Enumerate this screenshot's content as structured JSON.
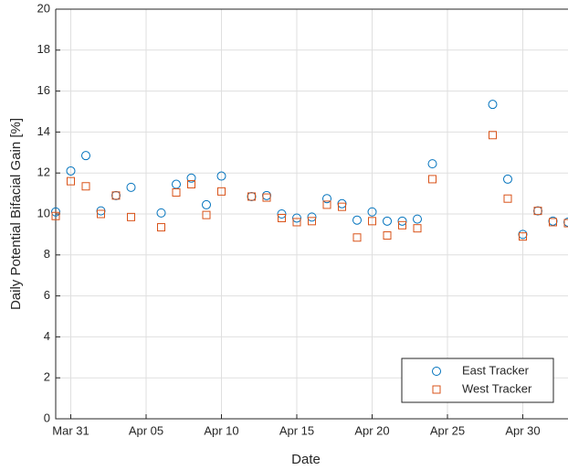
{
  "chart_data": {
    "type": "scatter",
    "x_label": "Date",
    "y_label": "Daily Potential Bifacial Gain [%]",
    "x": [
      "Mar 30",
      "Mar 31",
      "Apr 01",
      "Apr 02",
      "Apr 03",
      "Apr 04",
      "Apr 06",
      "Apr 07",
      "Apr 08",
      "Apr 09",
      "Apr 10",
      "Apr 12",
      "Apr 13",
      "Apr 14",
      "Apr 15",
      "Apr 16",
      "Apr 17",
      "Apr 18",
      "Apr 19",
      "Apr 20",
      "Apr 21",
      "Apr 22",
      "Apr 23",
      "Apr 24",
      "Apr 28",
      "Apr 29",
      "Apr 30",
      "May 01",
      "May 02",
      "May 03"
    ],
    "series": [
      {
        "name": "East Tracker",
        "color": "#0072bd",
        "marker": "circle",
        "values": [
          10.1,
          12.1,
          12.85,
          10.15,
          10.9,
          11.3,
          10.05,
          11.45,
          11.75,
          10.45,
          11.85,
          10.85,
          10.9,
          10.0,
          9.8,
          9.85,
          10.75,
          10.5,
          9.7,
          10.1,
          9.65,
          9.65,
          9.75,
          12.45,
          15.35,
          11.7,
          9.0,
          10.15,
          9.65,
          9.6
        ]
      },
      {
        "name": "West Tracker",
        "color": "#d95319",
        "marker": "square",
        "values": [
          9.9,
          11.6,
          11.35,
          10.0,
          10.9,
          9.85,
          9.35,
          11.05,
          11.45,
          9.95,
          11.1,
          10.85,
          10.8,
          9.8,
          9.6,
          9.65,
          10.45,
          10.35,
          8.85,
          9.65,
          8.95,
          9.45,
          9.3,
          11.7,
          13.85,
          10.75,
          8.9,
          10.15,
          9.6,
          9.55
        ]
      }
    ],
    "xlim": [
      "Mar 30",
      "May 03"
    ],
    "xticks": [
      "Mar 31",
      "Apr 05",
      "Apr 10",
      "Apr 15",
      "Apr 20",
      "Apr 25",
      "Apr 30"
    ],
    "ylim": [
      0,
      20
    ],
    "yticks": [
      0,
      2,
      4,
      6,
      8,
      10,
      12,
      14,
      16,
      18,
      20
    ],
    "grid": true,
    "legend": "lower right"
  }
}
